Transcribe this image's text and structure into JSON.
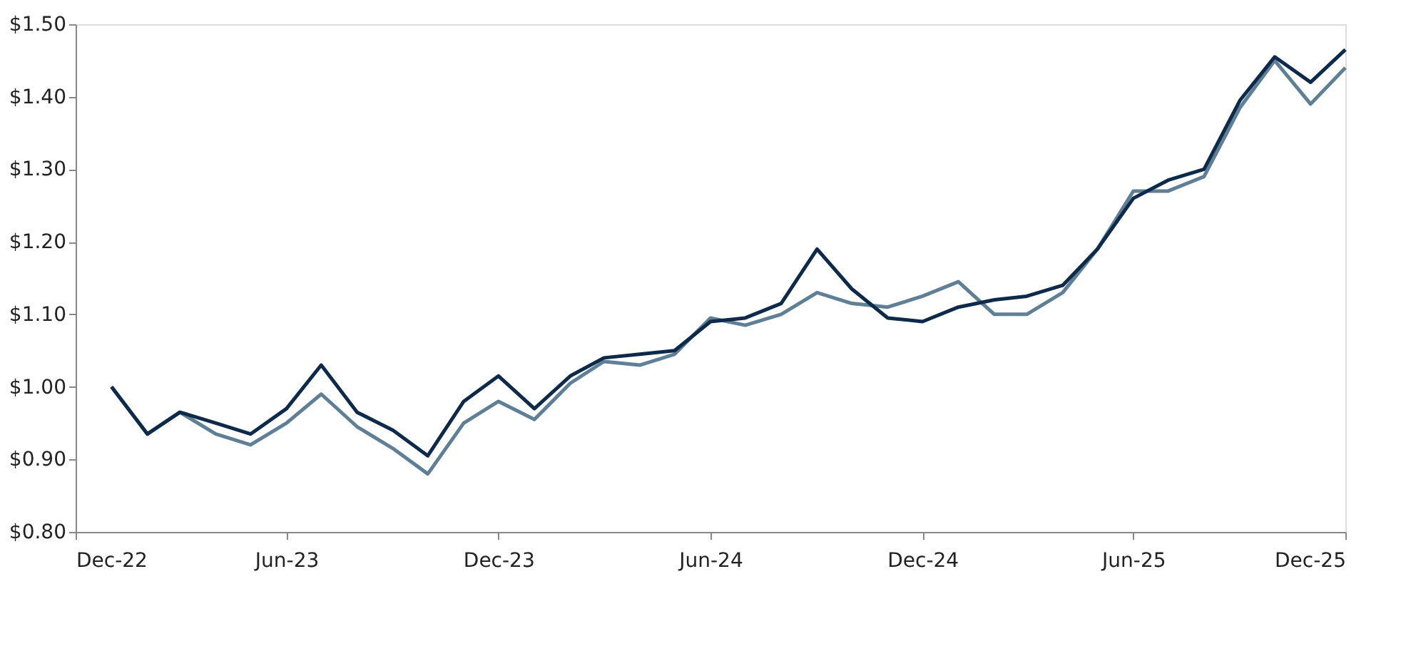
{
  "chart_data": {
    "type": "line",
    "x": [
      "2023-01",
      "2023-02",
      "2023-03",
      "2023-04",
      "2023-05",
      "2023-06",
      "2023-07",
      "2023-08",
      "2023-09",
      "2023-10",
      "2023-11",
      "2023-12",
      "2024-01",
      "2024-02",
      "2024-03",
      "2024-04",
      "2024-05",
      "2024-06",
      "2024-07",
      "2024-08",
      "2024-09",
      "2024-10",
      "2024-11",
      "2024-12",
      "2025-01",
      "2025-02",
      "2025-03",
      "2025-04",
      "2025-05",
      "2025-06",
      "2025-07",
      "2025-08",
      "2025-09",
      "2025-10",
      "2025-11",
      "2025-12"
    ],
    "series": [
      {
        "color": "#5f7f95",
        "values": [
          1.0,
          0.935,
          0.965,
          0.935,
          0.92,
          0.95,
          0.99,
          0.945,
          0.915,
          0.88,
          0.95,
          0.98,
          0.955,
          1.005,
          1.035,
          1.03,
          1.045,
          1.095,
          1.085,
          1.1,
          1.13,
          1.115,
          1.11,
          1.125,
          1.145,
          1.1,
          1.1,
          1.13,
          1.19,
          1.27,
          1.27,
          1.29,
          1.385,
          1.45,
          1.39,
          1.44
        ]
      },
      {
        "color": "#0d2a4a",
        "values": [
          1.0,
          0.935,
          0.965,
          0.95,
          0.935,
          0.97,
          1.03,
          0.965,
          0.94,
          0.905,
          0.98,
          1.015,
          0.97,
          1.015,
          1.04,
          1.045,
          1.05,
          1.09,
          1.095,
          1.115,
          1.19,
          1.135,
          1.095,
          1.09,
          1.11,
          1.12,
          1.125,
          1.14,
          1.19,
          1.26,
          1.285,
          1.3,
          1.395,
          1.455,
          1.42,
          1.465
        ]
      }
    ],
    "xlim": [
      "2022-12",
      "2025-12"
    ],
    "xticks": [
      {
        "value": "2022-12",
        "label": "Dec-22"
      },
      {
        "value": "2023-06",
        "label": "Jun-23"
      },
      {
        "value": "2023-12",
        "label": "Dec-23"
      },
      {
        "value": "2024-06",
        "label": "Jun-24"
      },
      {
        "value": "2024-12",
        "label": "Dec-24"
      },
      {
        "value": "2025-06",
        "label": "Jun-25"
      },
      {
        "value": "2025-12",
        "label": "Dec-25"
      }
    ],
    "ylim": [
      0.8,
      1.5
    ],
    "yticks": [
      {
        "value": 0.8,
        "label": "$0.80"
      },
      {
        "value": 0.9,
        "label": "$0.90"
      },
      {
        "value": 1.0,
        "label": "$1.00"
      },
      {
        "value": 1.1,
        "label": "$1.10"
      },
      {
        "value": 1.2,
        "label": "$1.20"
      },
      {
        "value": 1.3,
        "label": "$1.30"
      },
      {
        "value": 1.4,
        "label": "$1.40"
      },
      {
        "value": 1.5,
        "label": "$1.50"
      }
    ],
    "grid": false,
    "legend": false,
    "line_style": "solid",
    "marker": "none"
  }
}
